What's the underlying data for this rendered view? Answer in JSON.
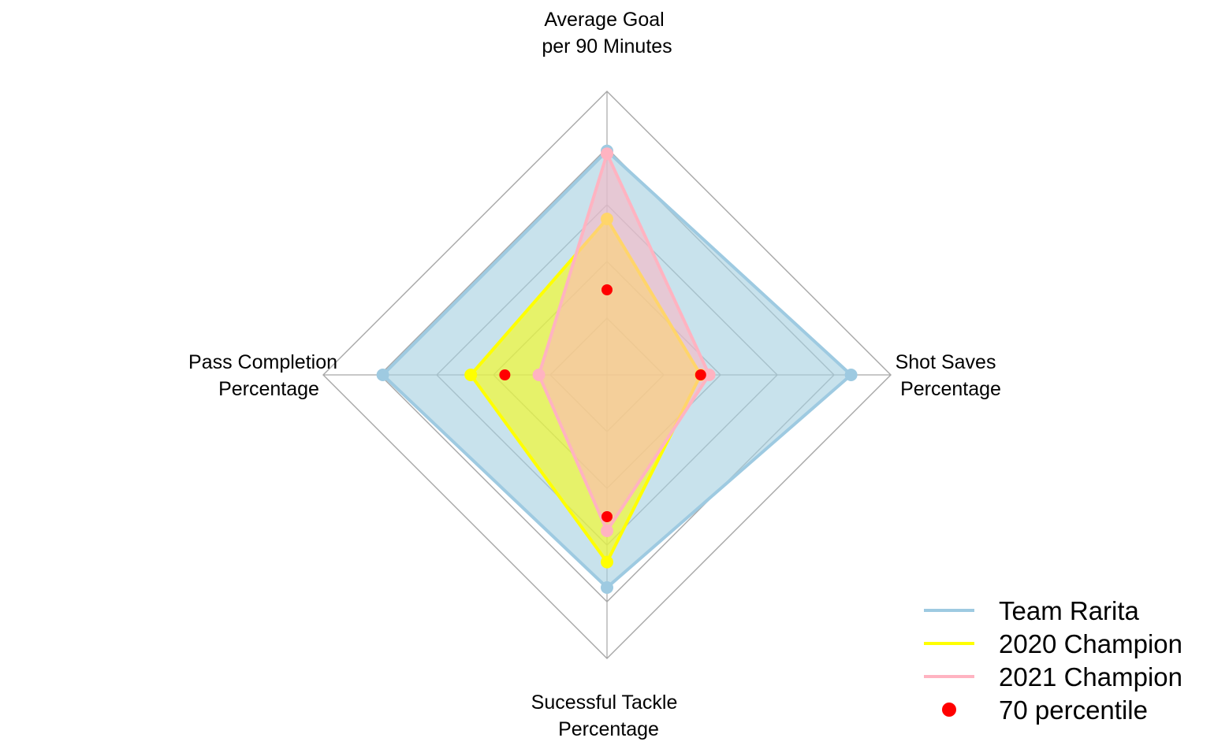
{
  "chart_data": {
    "type": "radar",
    "axes": [
      {
        "label": [
          "Average Goal",
          "per 90 Minutes"
        ]
      },
      {
        "label": [
          "Shot Saves",
          "Percentage"
        ]
      },
      {
        "label": [
          "Sucessful Tackle",
          "Percentage"
        ]
      },
      {
        "label": [
          "Pass Completion",
          "Percentage"
        ]
      }
    ],
    "rlim": [
      0,
      1
    ],
    "grid_levels": [
      0.2,
      0.4,
      0.6,
      0.8,
      1.0
    ],
    "series": [
      {
        "name": "Team Rarita",
        "values": [
          0.79,
          0.86,
          0.75,
          0.79
        ],
        "color": "#9ecae1",
        "fill_color": "#a6d1e0",
        "fill_opacity": 0.62,
        "line_width": 4
      },
      {
        "name": "2020 Champion",
        "values": [
          0.55,
          0.33,
          0.66,
          0.48
        ],
        "color": "#ffff00",
        "fill_color": "#ffff00",
        "fill_opacity": 0.55,
        "line_width": 4
      },
      {
        "name": "2021 Champion",
        "values": [
          0.78,
          0.36,
          0.55,
          0.24
        ],
        "color": "#ffb3c1",
        "fill_color": "#ffb3c1",
        "fill_opacity": 0.55,
        "line_width": 4
      }
    ],
    "markers": {
      "name": "70 percentile",
      "values": [
        0.3,
        0.33,
        0.5,
        0.36
      ],
      "color": "#ff0000"
    },
    "legend": {
      "position": "bottom-right"
    },
    "grid_color": "#a6a6a6"
  }
}
